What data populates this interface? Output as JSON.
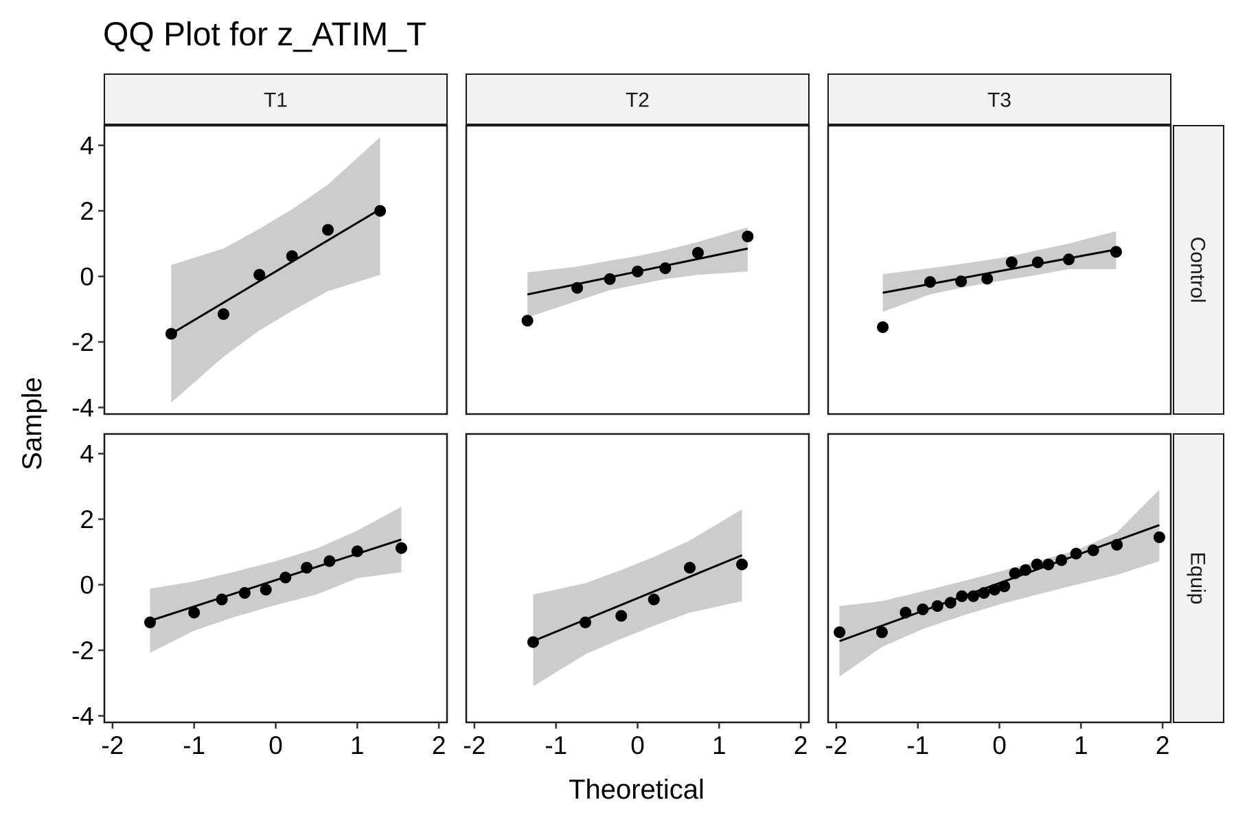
{
  "chart_data": {
    "type": "scatter",
    "title": "QQ Plot for z_ATIM_T",
    "xlabel": "Theoretical",
    "ylabel": "Sample",
    "xlim": [
      -2.1,
      2.1
    ],
    "ylim": [
      -4.2,
      4.6
    ],
    "x_ticks": [
      -2,
      -1,
      0,
      1,
      2
    ],
    "y_ticks": [
      -4,
      -2,
      0,
      2,
      4
    ],
    "columns": [
      "T1",
      "T2",
      "T3"
    ],
    "rows": [
      "Control",
      "Equip"
    ],
    "grid": false,
    "colors": {
      "points": "#000000",
      "line": "#000000",
      "band": "#cccccc",
      "strip_fill": "#f2f2f2"
    },
    "panels": [
      {
        "column": "T1",
        "row": "Control",
        "points": [
          [
            -1.28,
            -1.75
          ],
          [
            -0.64,
            -1.15
          ],
          [
            -0.2,
            0.05
          ],
          [
            0.2,
            0.62
          ],
          [
            0.64,
            1.42
          ],
          [
            1.28,
            2.0
          ]
        ],
        "line": [
          [
            -1.28,
            -1.75
          ],
          [
            1.28,
            2.05
          ]
        ],
        "band": {
          "x": [
            -1.28,
            -0.64,
            -0.2,
            0.2,
            0.64,
            1.28
          ],
          "upper": [
            0.35,
            0.85,
            1.45,
            2.05,
            2.8,
            4.25
          ],
          "lower": [
            -3.85,
            -2.45,
            -1.65,
            -1.05,
            -0.45,
            0.05
          ]
        }
      },
      {
        "column": "T2",
        "row": "Control",
        "points": [
          [
            -1.35,
            -1.35
          ],
          [
            -0.74,
            -0.35
          ],
          [
            -0.34,
            -0.08
          ],
          [
            0,
            0.15
          ],
          [
            0.34,
            0.25
          ],
          [
            0.74,
            0.72
          ],
          [
            1.35,
            1.22
          ]
        ],
        "line": [
          [
            -1.35,
            -0.55
          ],
          [
            1.35,
            0.85
          ]
        ],
        "band": {
          "x": [
            -1.35,
            -0.74,
            -0.34,
            0,
            0.34,
            0.74,
            1.35
          ],
          "upper": [
            0.12,
            0.3,
            0.48,
            0.62,
            0.8,
            1.05,
            1.5
          ],
          "lower": [
            -1.25,
            -0.75,
            -0.42,
            -0.25,
            -0.08,
            0.05,
            0.15
          ]
        }
      },
      {
        "column": "T3",
        "row": "Control",
        "points": [
          [
            -1.43,
            -1.55
          ],
          [
            -0.85,
            -0.17
          ],
          [
            -0.47,
            -0.15
          ],
          [
            -0.15,
            -0.07
          ],
          [
            0.15,
            0.43
          ],
          [
            0.47,
            0.43
          ],
          [
            0.85,
            0.52
          ],
          [
            1.43,
            0.75
          ]
        ],
        "line": [
          [
            -1.43,
            -0.5
          ],
          [
            1.43,
            0.82
          ]
        ],
        "band": {
          "x": [
            -1.43,
            -0.85,
            -0.47,
            -0.15,
            0.15,
            0.47,
            0.85,
            1.43
          ],
          "upper": [
            0.07,
            0.25,
            0.38,
            0.5,
            0.62,
            0.8,
            1.0,
            1.38
          ],
          "lower": [
            -1.08,
            -0.55,
            -0.35,
            -0.2,
            -0.08,
            0.05,
            0.22,
            0.22
          ]
        }
      },
      {
        "column": "T1",
        "row": "Equip",
        "points": [
          [
            -1.54,
            -1.15
          ],
          [
            -1.0,
            -0.85
          ],
          [
            -0.66,
            -0.45
          ],
          [
            -0.38,
            -0.25
          ],
          [
            -0.12,
            -0.15
          ],
          [
            0.12,
            0.22
          ],
          [
            0.38,
            0.52
          ],
          [
            0.66,
            0.72
          ],
          [
            1.0,
            1.02
          ],
          [
            1.54,
            1.12
          ]
        ],
        "line": [
          [
            -1.54,
            -1.1
          ],
          [
            1.54,
            1.38
          ]
        ],
        "band": {
          "x": [
            -1.54,
            -1.0,
            -0.5,
            0,
            0.5,
            1.0,
            1.54
          ],
          "upper": [
            -0.12,
            0.1,
            0.4,
            0.72,
            1.1,
            1.65,
            2.38
          ],
          "lower": [
            -2.08,
            -1.4,
            -0.98,
            -0.62,
            -0.3,
            0.2,
            0.38
          ]
        }
      },
      {
        "column": "T2",
        "row": "Equip",
        "points": [
          [
            -1.28,
            -1.75
          ],
          [
            -0.64,
            -1.15
          ],
          [
            -0.2,
            -0.95
          ],
          [
            0.2,
            -0.45
          ],
          [
            0.64,
            0.52
          ],
          [
            1.28,
            0.62
          ]
        ],
        "line": [
          [
            -1.28,
            -1.72
          ],
          [
            1.28,
            0.9
          ]
        ],
        "band": {
          "x": [
            -1.28,
            -0.64,
            -0.2,
            0.2,
            0.64,
            1.28
          ],
          "upper": [
            -0.3,
            0.05,
            0.45,
            0.85,
            1.35,
            2.3
          ],
          "lower": [
            -3.1,
            -2.12,
            -1.65,
            -1.25,
            -0.85,
            -0.5
          ]
        }
      },
      {
        "column": "T3",
        "row": "Equip",
        "points": [
          [
            -1.96,
            -1.45
          ],
          [
            -1.44,
            -1.45
          ],
          [
            -1.15,
            -0.85
          ],
          [
            -0.94,
            -0.75
          ],
          [
            -0.76,
            -0.65
          ],
          [
            -0.6,
            -0.55
          ],
          [
            -0.46,
            -0.35
          ],
          [
            -0.32,
            -0.35
          ],
          [
            -0.19,
            -0.25
          ],
          [
            -0.06,
            -0.15
          ],
          [
            0.06,
            -0.05
          ],
          [
            0.19,
            0.35
          ],
          [
            0.32,
            0.45
          ],
          [
            0.46,
            0.62
          ],
          [
            0.6,
            0.62
          ],
          [
            0.76,
            0.75
          ],
          [
            0.94,
            0.95
          ],
          [
            1.15,
            1.05
          ],
          [
            1.44,
            1.22
          ],
          [
            1.96,
            1.45
          ]
        ],
        "line": [
          [
            -1.96,
            -1.72
          ],
          [
            1.96,
            1.82
          ]
        ],
        "band": {
          "x": [
            -1.96,
            -1.44,
            -0.94,
            -0.46,
            0,
            0.46,
            0.94,
            1.44,
            1.96
          ],
          "upper": [
            -0.65,
            -0.5,
            -0.2,
            0.1,
            0.4,
            0.72,
            1.05,
            1.6,
            2.9
          ],
          "lower": [
            -2.8,
            -1.9,
            -1.35,
            -0.95,
            -0.6,
            -0.3,
            0.0,
            0.3,
            0.72
          ]
        }
      }
    ]
  }
}
